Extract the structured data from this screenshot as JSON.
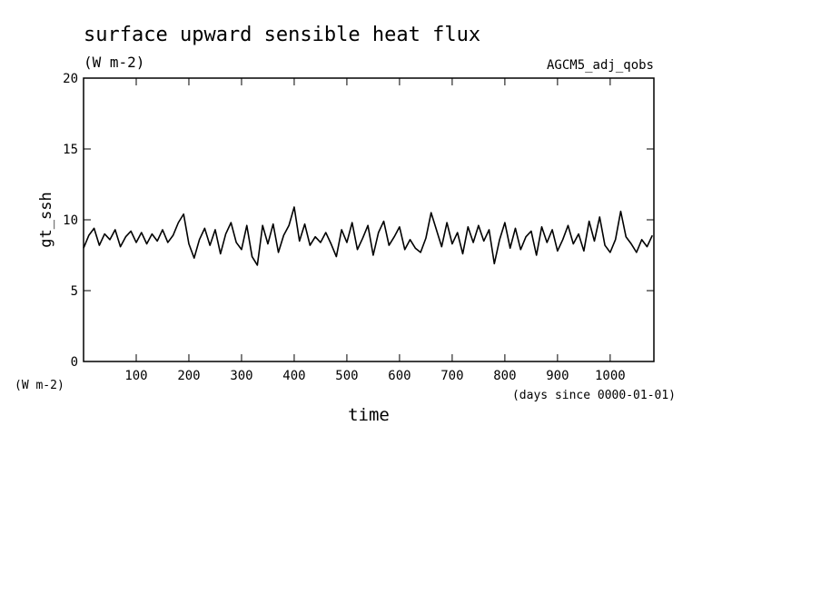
{
  "chart_data": {
    "type": "line",
    "title": "surface upward sensible heat flux",
    "subtitle": "(W m-2)",
    "source": "AGCM5_adj_qobs",
    "y_label": "gt_ssh",
    "y_unit": "(W m-2)",
    "x_label": "time",
    "x_unit": "(days since 0000-01-01)",
    "x": [
      0,
      10,
      20,
      30,
      40,
      50,
      60,
      70,
      80,
      90,
      100,
      110,
      120,
      130,
      140,
      150,
      160,
      170,
      180,
      190,
      200,
      210,
      220,
      230,
      240,
      250,
      260,
      270,
      280,
      290,
      300,
      310,
      320,
      330,
      340,
      350,
      360,
      370,
      380,
      390,
      400,
      410,
      420,
      430,
      440,
      450,
      460,
      470,
      480,
      490,
      500,
      510,
      520,
      530,
      540,
      550,
      560,
      570,
      580,
      590,
      600,
      610,
      620,
      630,
      640,
      650,
      660,
      670,
      680,
      690,
      700,
      710,
      720,
      730,
      740,
      750,
      760,
      770,
      780,
      790,
      800,
      810,
      820,
      830,
      840,
      850,
      860,
      870,
      880,
      890,
      900,
      910,
      920,
      930,
      940,
      950,
      960,
      970,
      980,
      990,
      1000,
      1010,
      1020,
      1030,
      1040,
      1050,
      1060,
      1070,
      1080
    ],
    "series": [
      {
        "name": "gt_ssh",
        "color": "#000000",
        "values": [
          8.0,
          8.9,
          9.4,
          8.2,
          9.0,
          8.6,
          9.3,
          8.1,
          8.8,
          9.2,
          8.4,
          9.1,
          8.3,
          9.0,
          8.5,
          9.3,
          8.4,
          8.9,
          9.8,
          10.4,
          8.3,
          7.3,
          8.6,
          9.4,
          8.2,
          9.3,
          7.6,
          9.0,
          9.8,
          8.4,
          7.9,
          9.6,
          7.4,
          6.8,
          9.6,
          8.3,
          9.7,
          7.7,
          8.9,
          9.6,
          10.9,
          8.5,
          9.7,
          8.2,
          8.8,
          8.4,
          9.1,
          8.3,
          7.4,
          9.3,
          8.4,
          9.8,
          7.9,
          8.7,
          9.6,
          7.5,
          9.1,
          9.9,
          8.2,
          8.8,
          9.5,
          7.9,
          8.6,
          8.0,
          7.7,
          8.7,
          10.5,
          9.3,
          8.1,
          9.8,
          8.3,
          9.1,
          7.6,
          9.5,
          8.4,
          9.6,
          8.5,
          9.3,
          6.9,
          8.6,
          9.8,
          8.0,
          9.4,
          7.9,
          8.8,
          9.2,
          7.5,
          9.5,
          8.4,
          9.3,
          7.8,
          8.6,
          9.6,
          8.3,
          9.0,
          7.8,
          9.9,
          8.5,
          10.2,
          8.2,
          7.7,
          8.6,
          10.6,
          8.8,
          8.3,
          7.7,
          8.6,
          8.1,
          8.9
        ]
      }
    ],
    "xlim": [
      0,
      1083
    ],
    "ylim": [
      0,
      20
    ],
    "xticks": [
      100,
      200,
      300,
      400,
      500,
      600,
      700,
      800,
      900,
      1000
    ],
    "yticks": [
      0,
      5,
      10,
      15,
      20
    ]
  }
}
